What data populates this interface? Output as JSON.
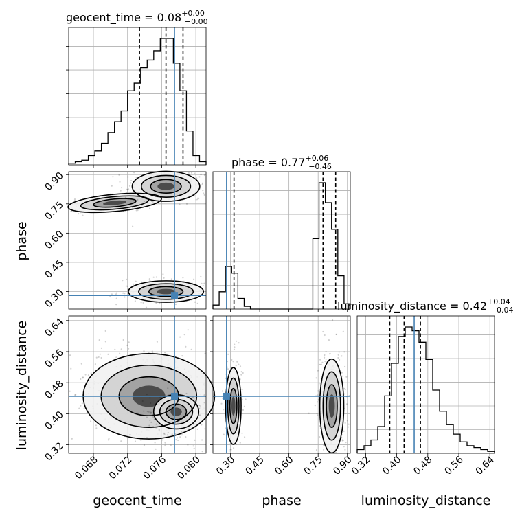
{
  "chart_data": {
    "type": "corner",
    "parameters": [
      "geocent_time",
      "phase",
      "luminosity_distance"
    ],
    "titles": [
      {
        "param": "geocent_time",
        "median": "0.08",
        "plus": "+0.00",
        "minus": "−0.00",
        "prefix": "geocent_time = "
      },
      {
        "param": "phase",
        "median": "0.77",
        "plus": "+0.06",
        "minus": "−0.46",
        "prefix": "phase = "
      },
      {
        "param": "luminosity_distance",
        "median": "0.42",
        "plus": "+0.04",
        "minus": "−0.04",
        "prefix": "luminosity_distance = "
      }
    ],
    "ranges": {
      "geocent_time": [
        0.0651,
        0.0812
      ],
      "phase": [
        0.21,
        0.915
      ],
      "luminosity_distance": [
        0.298,
        0.652
      ]
    },
    "ticks": {
      "geocent_time": {
        "values": [
          0.068,
          0.072,
          0.076,
          0.08
        ],
        "labels": [
          "0.068",
          "0.072",
          "0.076",
          "0.080"
        ]
      },
      "phase": {
        "values": [
          0.3,
          0.45,
          0.6,
          0.75,
          0.9
        ],
        "labels": [
          "0.30",
          "0.45",
          "0.60",
          "0.75",
          "0.90"
        ]
      },
      "luminosity_distance": {
        "values": [
          0.32,
          0.4,
          0.48,
          0.56,
          0.64
        ],
        "labels": [
          "0.32",
          "0.40",
          "0.48",
          "0.56",
          "0.64"
        ]
      }
    },
    "truths": {
      "geocent_time": 0.0775,
      "phase": 0.28,
      "luminosity_distance": 0.445
    },
    "quantiles": {
      "geocent_time": [
        0.0734,
        0.0765,
        0.0785
      ],
      "phase": [
        0.318,
        0.775,
        0.84
      ],
      "luminosity_distance": [
        0.382,
        0.419,
        0.461
      ]
    },
    "histograms": {
      "geocent_time": [
        1,
        2,
        3,
        6,
        9,
        14,
        21,
        28,
        35,
        48,
        53,
        63,
        68,
        74,
        82,
        82,
        66,
        48,
        22,
        6,
        2
      ],
      "phase": [
        3,
        13,
        32,
        27,
        8,
        2,
        0,
        0,
        0,
        0,
        0,
        0,
        0,
        0,
        0,
        0,
        53,
        95,
        80,
        60,
        25,
        4
      ],
      "luminosity_distance": [
        2,
        4,
        7,
        14,
        30,
        47,
        61,
        66,
        64,
        58,
        49,
        33,
        22,
        15,
        10,
        6,
        4,
        3,
        2,
        1
      ]
    },
    "grid": true
  }
}
